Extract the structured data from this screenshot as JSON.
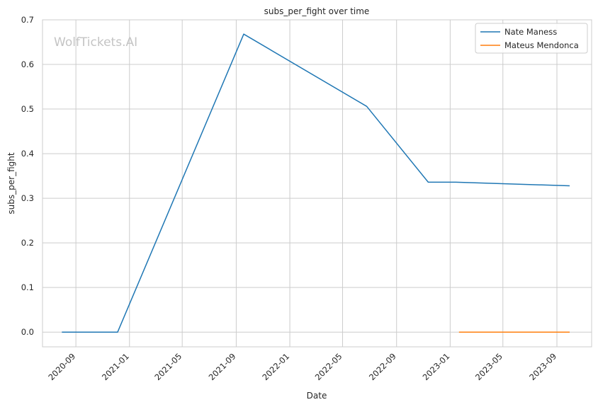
{
  "chart_data": {
    "type": "line",
    "title": "subs_per_fight over time",
    "xlabel": "Date",
    "ylabel": "subs_per_fight",
    "watermark": "WolfTickets.AI",
    "x_ticks": [
      "2020-09",
      "2021-01",
      "2021-05",
      "2021-09",
      "2022-01",
      "2022-05",
      "2022-09",
      "2023-01",
      "2023-05",
      "2023-09"
    ],
    "y_ticks": [
      "0.0",
      "0.1",
      "0.2",
      "0.3",
      "0.4",
      "0.5",
      "0.6",
      "0.7"
    ],
    "xlim": [
      "2020-06-17",
      "2023-11-19"
    ],
    "ylim": [
      -0.033,
      0.7
    ],
    "grid": true,
    "legend_position": "top-right",
    "series": [
      {
        "name": "Nate Maness",
        "color": "#1f77b4",
        "points": [
          {
            "x": "2020-07-31",
            "y": 0.0
          },
          {
            "x": "2020-12-05",
            "y": 0.0
          },
          {
            "x": "2021-09-18",
            "y": 0.668
          },
          {
            "x": "2022-06-25",
            "y": 0.506
          },
          {
            "x": "2022-11-12",
            "y": 0.336
          },
          {
            "x": "2023-01-14",
            "y": 0.336
          },
          {
            "x": "2023-09-30",
            "y": 0.328
          }
        ]
      },
      {
        "name": "Mateus Mendonca",
        "color": "#ff7f0e",
        "points": [
          {
            "x": "2023-01-21",
            "y": 0.0
          },
          {
            "x": "2023-09-30",
            "y": 0.0
          }
        ]
      }
    ]
  }
}
